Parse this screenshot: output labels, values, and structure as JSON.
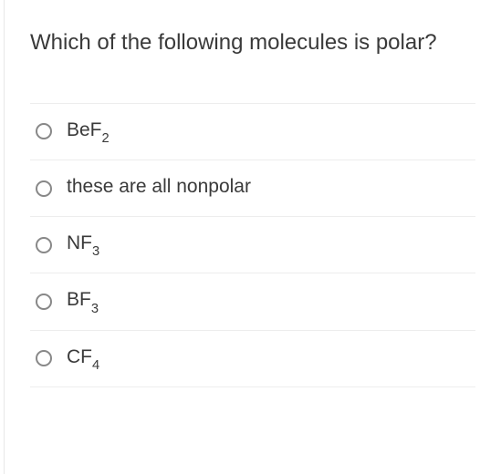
{
  "question": {
    "text": "Which of the following molecules is polar?",
    "font_size": 24,
    "text_color": "#3a3a3a"
  },
  "options": [
    {
      "base": "BeF",
      "sub": "2",
      "plain": ""
    },
    {
      "base": "",
      "sub": "",
      "plain": "these are all nonpolar"
    },
    {
      "base": "NF",
      "sub": "3",
      "plain": ""
    },
    {
      "base": "BF",
      "sub": "3",
      "plain": ""
    },
    {
      "base": "CF",
      "sub": "4",
      "plain": ""
    }
  ],
  "styles": {
    "option_font_size": 21,
    "option_text_color": "#3a3a3a",
    "radio_border_color": "#888888",
    "divider_color": "#ededed",
    "background_color": "#ffffff",
    "left_border_color": "#e8e8e8"
  }
}
